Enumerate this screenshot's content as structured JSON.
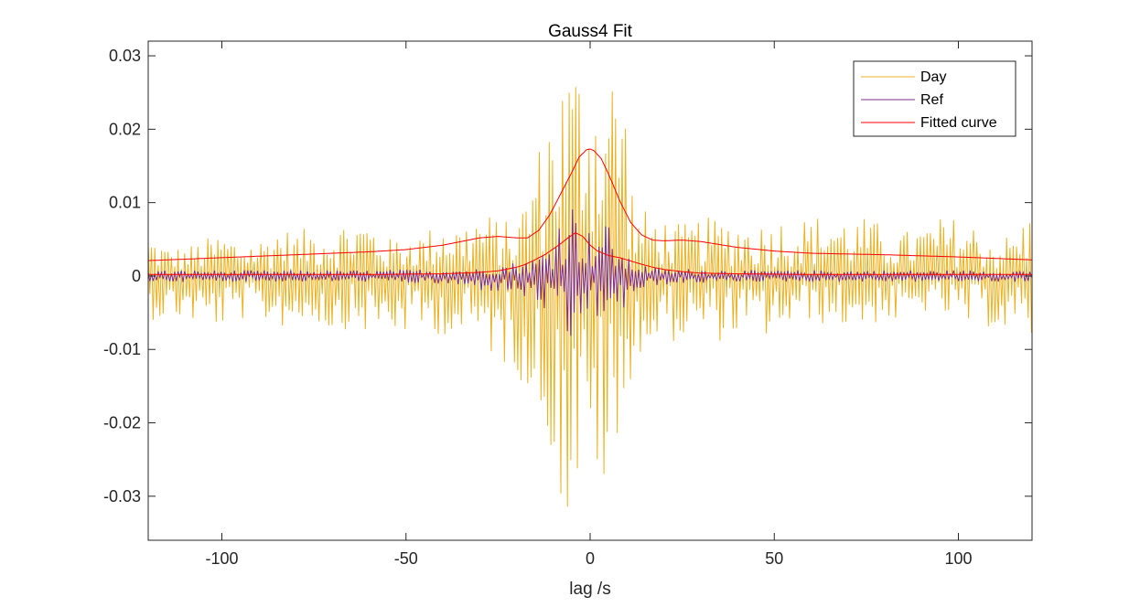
{
  "chart_data": {
    "type": "line",
    "title": "Gauss4 Fit",
    "xlabel": "lag /s",
    "ylabel": "",
    "xlim": [
      -120,
      120
    ],
    "ylim": [
      -0.036,
      0.032
    ],
    "xticks": [
      -100,
      -50,
      0,
      50,
      100
    ],
    "xtick_labels": [
      "-100",
      "-50",
      "0",
      "50",
      "100"
    ],
    "yticks": [
      0.03,
      0.02,
      0.01,
      0,
      -0.01,
      -0.02,
      -0.03
    ],
    "ytick_labels": [
      "0.03",
      "0.02",
      "0.01",
      "0",
      "-0.01",
      "-0.02",
      "-0.03"
    ],
    "grid": false,
    "legend_position": "top-right",
    "series": [
      {
        "name": "Day",
        "color": "#EDB120",
        "style": "noisy oscillation",
        "x": [
          -120,
          -115,
          -110,
          -105,
          -100,
          -95,
          -90,
          -85,
          -80,
          -75,
          -70,
          -65,
          -60,
          -55,
          -50,
          -45,
          -40,
          -35,
          -30,
          -25,
          -20,
          -16,
          -12,
          -10,
          -8,
          -6,
          -4,
          -2,
          0,
          2,
          4,
          6,
          8,
          10,
          12,
          16,
          20,
          25,
          30,
          35,
          40,
          45,
          50,
          55,
          60,
          65,
          70,
          75,
          80,
          85,
          90,
          95,
          100,
          105,
          110,
          115,
          120
        ],
        "y_upper": [
          0.006,
          0.004,
          0.004,
          0.005,
          0.006,
          0.005,
          0.005,
          0.007,
          0.006,
          0.007,
          0.007,
          0.008,
          0.008,
          0.005,
          0.006,
          0.006,
          0.008,
          0.007,
          0.009,
          0.008,
          0.007,
          0.015,
          0.021,
          0.027,
          0.028,
          0.031,
          0.03,
          0.032,
          0.031,
          0.027,
          0.029,
          0.03,
          0.032,
          0.023,
          0.009,
          0.009,
          0.008,
          0.007,
          0.008,
          0.008,
          0.008,
          0.007,
          0.008,
          0.008,
          0.008,
          0.009,
          0.008,
          0.008,
          0.007,
          0.006,
          0.007,
          0.008,
          0.008,
          0.007,
          0.005,
          0.006,
          0.009
        ],
        "y_lower": [
          -0.006,
          -0.006,
          -0.006,
          -0.007,
          -0.007,
          -0.006,
          -0.006,
          -0.007,
          -0.007,
          -0.006,
          -0.008,
          -0.007,
          -0.008,
          -0.008,
          -0.008,
          -0.008,
          -0.008,
          -0.009,
          -0.009,
          -0.012,
          -0.013,
          -0.017,
          -0.024,
          -0.024,
          -0.032,
          -0.036,
          -0.03,
          -0.033,
          -0.032,
          -0.027,
          -0.034,
          -0.024,
          -0.035,
          -0.017,
          -0.011,
          -0.011,
          -0.009,
          -0.009,
          -0.008,
          -0.009,
          -0.008,
          -0.009,
          -0.008,
          -0.007,
          -0.006,
          -0.007,
          -0.007,
          -0.007,
          -0.006,
          -0.007,
          -0.005,
          -0.005,
          -0.007,
          -0.007,
          -0.007,
          -0.009,
          -0.009
        ]
      },
      {
        "name": "Ref",
        "color": "#7E2F8E",
        "style": "small oscillation",
        "x": [
          -120,
          -100,
          -80,
          -60,
          -40,
          -30,
          -20,
          -15,
          -12,
          -10,
          -8,
          -6,
          -4,
          -2,
          0,
          2,
          4,
          6,
          8,
          10,
          15,
          20,
          30,
          40,
          60,
          80,
          100,
          120
        ],
        "y_upper": [
          0.0008,
          0.0008,
          0.0008,
          0.0008,
          0.001,
          0.001,
          0.002,
          0.0025,
          0.004,
          0.006,
          0.009,
          0.011,
          0.01,
          0.008,
          0.006,
          0.007,
          0.008,
          0.006,
          0.004,
          0.0025,
          0.0015,
          0.001,
          0.001,
          0.0008,
          0.0008,
          0.0008,
          0.0008,
          0.0008
        ],
        "y_lower": [
          -0.0008,
          -0.0008,
          -0.0008,
          -0.0008,
          -0.0012,
          -0.002,
          -0.0025,
          -0.004,
          -0.005,
          -0.007,
          -0.009,
          -0.012,
          -0.008,
          -0.006,
          -0.005,
          -0.006,
          -0.007,
          -0.006,
          -0.007,
          -0.003,
          -0.002,
          -0.0012,
          -0.001,
          -0.0008,
          -0.0008,
          -0.0008,
          -0.0008,
          -0.0008
        ]
      },
      {
        "name": "Fitted curve",
        "color": "#FF0000",
        "style": "smooth",
        "x": [
          -120,
          -100,
          -80,
          -60,
          -50,
          -40,
          -35,
          -30,
          -25,
          -20,
          -17,
          -14,
          -11,
          -8,
          -5,
          -3,
          -1,
          0,
          1,
          3,
          5,
          8,
          11,
          14,
          17,
          20,
          25,
          30,
          35,
          40,
          50,
          60,
          80,
          100,
          120
        ],
        "y": [
          0.0021,
          0.0025,
          0.0029,
          0.0033,
          0.0036,
          0.0042,
          0.0047,
          0.0052,
          0.0054,
          0.0052,
          0.0052,
          0.0062,
          0.0083,
          0.0112,
          0.0141,
          0.0162,
          0.0172,
          0.0173,
          0.0171,
          0.016,
          0.0139,
          0.0103,
          0.0073,
          0.0056,
          0.0049,
          0.0048,
          0.0049,
          0.0047,
          0.0043,
          0.0039,
          0.0034,
          0.0031,
          0.0029,
          0.0026,
          0.0022
        ]
      },
      {
        "name": "",
        "color": "#FF0000",
        "style": "smooth",
        "x": [
          -120,
          -60,
          -40,
          -30,
          -25,
          -20,
          -18,
          -15,
          -12,
          -8,
          -6,
          -4,
          -2,
          0,
          2,
          5,
          8,
          10,
          14,
          17,
          20,
          25,
          30,
          40,
          60,
          80,
          100,
          120
        ],
        "y": [
          0.0002,
          0.0002,
          0.0003,
          0.0005,
          0.0007,
          0.0012,
          0.0015,
          0.0022,
          0.003,
          0.0044,
          0.0052,
          0.0059,
          0.0054,
          0.0042,
          0.0034,
          0.0028,
          0.0025,
          0.0022,
          0.0016,
          0.0012,
          0.0009,
          0.0006,
          0.0004,
          0.0003,
          0.0002,
          0.0002,
          0.0002,
          0.0002
        ]
      }
    ]
  }
}
